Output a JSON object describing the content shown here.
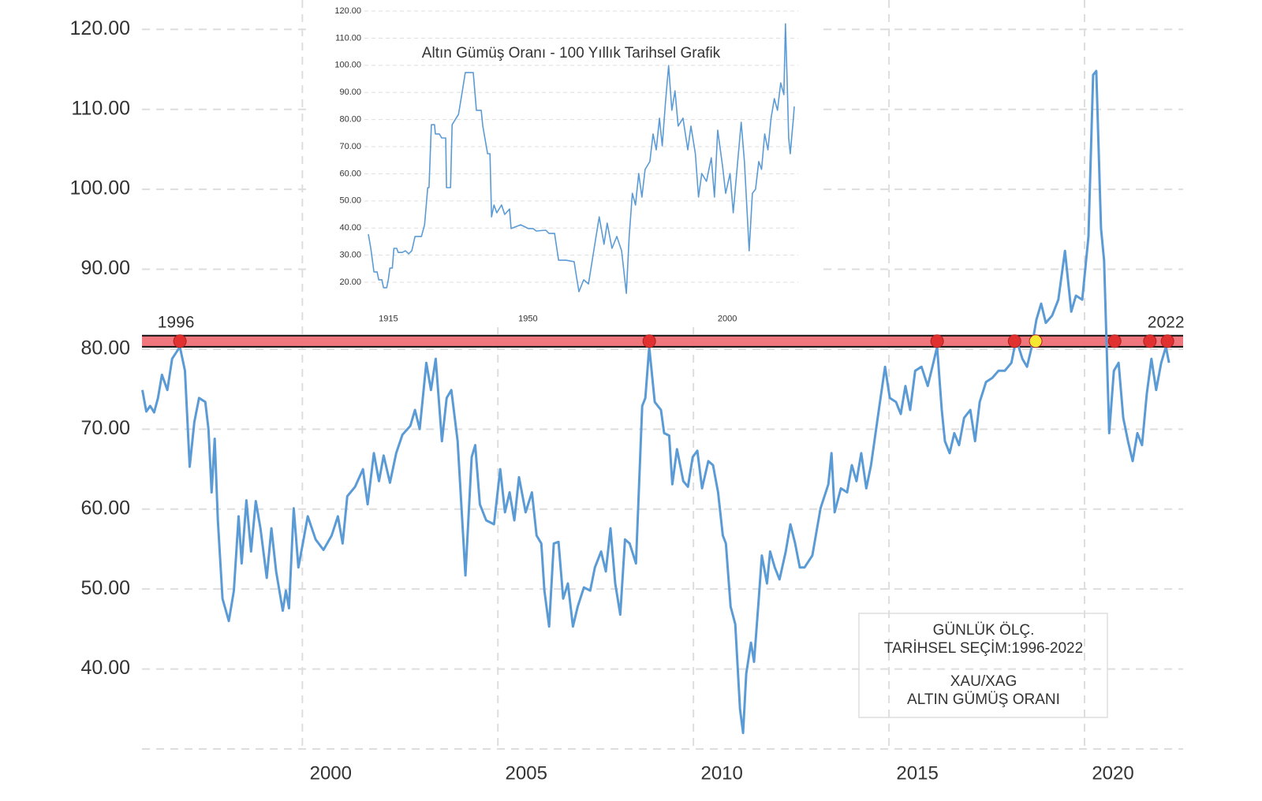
{
  "chart_data": [
    {
      "type": "line",
      "x": [
        1995.91,
        1996.01,
        1996.11,
        1996.21,
        1996.31,
        1996.41,
        1996.55,
        1996.67,
        1996.87,
        1997.0,
        1997.12,
        1997.24,
        1997.36,
        1997.52,
        1997.6,
        1997.68,
        1997.76,
        1997.84,
        1997.96,
        1998.12,
        1998.25,
        1998.37,
        1998.45,
        1998.57,
        1998.69,
        1998.81,
        1998.93,
        1999.09,
        1999.21,
        1999.33,
        1999.5,
        1999.58,
        1999.66,
        1999.78,
        1999.9,
        2000.02,
        2000.14,
        2000.34,
        2000.54,
        2000.75,
        2000.91,
        2001.03,
        2001.15,
        2001.35,
        2001.55,
        2001.67,
        2001.83,
        2001.96,
        2002.08,
        2002.24,
        2002.4,
        2002.56,
        2002.76,
        2002.88,
        2003.0,
        2003.17,
        2003.29,
        2003.41,
        2003.57,
        2003.69,
        2003.81,
        2003.97,
        2004.17,
        2004.33,
        2004.42,
        2004.54,
        2004.7,
        2004.9,
        2005.06,
        2005.18,
        2005.3,
        2005.42,
        2005.54,
        2005.71,
        2005.87,
        2005.99,
        2006.11,
        2006.19,
        2006.31,
        2006.43,
        2006.55,
        2006.67,
        2006.79,
        2006.92,
        2007.04,
        2007.2,
        2007.36,
        2007.48,
        2007.64,
        2007.76,
        2007.88,
        2008.0,
        2008.13,
        2008.25,
        2008.37,
        2008.53,
        2008.69,
        2008.77,
        2008.87,
        2009.01,
        2009.17,
        2009.25,
        2009.38,
        2009.46,
        2009.58,
        2009.74,
        2009.86,
        2009.98,
        2010.1,
        2010.22,
        2010.38,
        2010.5,
        2010.63,
        2010.75,
        2010.83,
        2010.95,
        2011.07,
        2011.19,
        2011.27,
        2011.35,
        2011.47,
        2011.55,
        2011.67,
        2011.75,
        2011.88,
        2011.96,
        2012.08,
        2012.2,
        2012.36,
        2012.48,
        2012.6,
        2012.72,
        2012.84,
        2013.04,
        2013.25,
        2013.45,
        2013.53,
        2013.61,
        2013.77,
        2013.93,
        2014.05,
        2014.17,
        2014.29,
        2014.42,
        2014.54,
        2014.74,
        2014.9,
        2015.02,
        2015.18,
        2015.3,
        2015.42,
        2015.54,
        2015.67,
        2015.83,
        2015.99,
        2016.11,
        2016.23,
        2016.35,
        2016.43,
        2016.55,
        2016.67,
        2016.79,
        2016.92,
        2017.08,
        2017.2,
        2017.32,
        2017.48,
        2017.64,
        2017.8,
        2017.96,
        2018.13,
        2018.25,
        2018.41,
        2018.53,
        2018.65,
        2018.77,
        2018.89,
        2019.01,
        2019.17,
        2019.33,
        2019.5,
        2019.66,
        2019.78,
        2019.94,
        2020.1,
        2020.22,
        2020.3,
        2020.42,
        2020.5,
        2020.63,
        2020.75,
        2020.87,
        2020.99,
        2021.11,
        2021.23,
        2021.35,
        2021.47,
        2021.59,
        2021.71,
        2021.83,
        2021.96,
        2022.08,
        2022.16
      ],
      "series": [
        {
          "color": "#5b9bd5",
          "values": [
            74.9,
            72.2,
            72.9,
            72.1,
            73.9,
            76.8,
            74.9,
            78.8,
            80.3,
            77.3,
            65.3,
            70.9,
            73.9,
            73.4,
            70.0,
            62.1,
            68.8,
            58.6,
            48.8,
            46.0,
            49.8,
            59.1,
            53.2,
            61.1,
            54.7,
            61.0,
            57.6,
            51.4,
            57.6,
            52.2,
            47.3,
            49.8,
            47.6,
            60.1,
            52.7,
            55.9,
            59.1,
            56.2,
            54.9,
            56.7,
            59.1,
            55.7,
            61.6,
            62.8,
            65.0,
            60.6,
            67.0,
            63.5,
            66.7,
            63.3,
            67.0,
            69.3,
            70.4,
            72.4,
            70.0,
            78.3,
            74.9,
            78.8,
            68.5,
            73.9,
            74.9,
            68.5,
            51.7,
            66.5,
            68.0,
            60.6,
            58.6,
            58.1,
            65.0,
            59.6,
            62.1,
            58.6,
            64.0,
            59.6,
            62.1,
            56.7,
            55.7,
            49.8,
            45.3,
            55.7,
            55.9,
            48.8,
            50.7,
            45.3,
            47.8,
            50.2,
            49.8,
            52.7,
            54.7,
            52.2,
            57.6,
            50.7,
            46.8,
            56.2,
            55.7,
            53.2,
            72.9,
            73.9,
            80.3,
            73.4,
            72.4,
            69.5,
            69.2,
            63.1,
            67.5,
            63.5,
            62.8,
            66.5,
            67.3,
            62.6,
            66.0,
            65.5,
            62.1,
            56.7,
            55.7,
            47.8,
            45.6,
            35.0,
            32.0,
            39.4,
            43.3,
            40.9,
            48.8,
            54.2,
            50.7,
            54.7,
            52.7,
            51.2,
            54.7,
            58.1,
            55.7,
            52.7,
            52.7,
            54.2,
            60.1,
            63.1,
            67.0,
            59.6,
            62.6,
            62.1,
            65.5,
            63.5,
            67.0,
            62.6,
            65.5,
            72.4,
            77.8,
            73.9,
            73.4,
            71.9,
            75.4,
            72.4,
            77.3,
            77.8,
            75.4,
            77.8,
            80.3,
            72.4,
            68.5,
            67.0,
            69.5,
            68.0,
            71.4,
            72.4,
            68.5,
            73.4,
            75.9,
            76.4,
            77.3,
            77.3,
            78.3,
            81.3,
            78.8,
            77.8,
            80.3,
            83.7,
            85.7,
            83.3,
            84.2,
            86.2,
            92.3,
            84.7,
            86.7,
            86.2,
            94.1,
            114.3,
            114.8,
            95.1,
            91.1,
            69.5,
            77.3,
            78.3,
            71.4,
            68.5,
            66.0,
            69.5,
            68.0,
            74.4,
            78.8,
            74.9,
            78.3,
            80.3,
            78.3
          ]
        }
      ],
      "xlim": [
        1995.9,
        2022.5
      ],
      "xticks": [
        2000,
        2005,
        2010,
        2015,
        2020
      ],
      "ylim": [
        30,
        122
      ],
      "yticks": [
        {
          "value": 40,
          "label": "40.00"
        },
        {
          "value": 50,
          "label": "50.00"
        },
        {
          "value": 60,
          "label": "60.00"
        },
        {
          "value": 70,
          "label": "70.00"
        },
        {
          "value": 80,
          "label": "80.00"
        },
        {
          "value": 90,
          "label": "90.00"
        },
        {
          "value": 100,
          "label": "100.00"
        },
        {
          "value": 110,
          "label": "110.00"
        },
        {
          "value": 120,
          "label": "120.00"
        }
      ],
      "grid": true,
      "band": [
        80.3,
        81.7
      ],
      "band_color": "#f07077",
      "markers": {
        "x": [
          1996.87,
          2008.87,
          2016.23,
          2018.21,
          2018.75,
          2020.77,
          2021.67,
          2022.12
        ],
        "y": [
          81.0,
          81.0,
          81.0,
          81.0,
          81.0,
          81.0,
          81.0,
          81.0
        ],
        "colors": [
          "#e03030",
          "#e03030",
          "#e03030",
          "#e03030",
          "#f5e830",
          "#e03030",
          "#e03030",
          "#e03030"
        ]
      },
      "annotations": [
        "1996",
        "2022"
      ],
      "info_box": [
        "GÜNLÜK ÖLÇ.",
        "TARİHSEL SEÇİM:1996-2022",
        "XAU/XAG",
        "ALTIN GÜMÜŞ ORANI"
      ]
    },
    {
      "type": "line",
      "title": "Altın Gümüş Oranı - 100 Yıllık Tarihsel Grafik",
      "x": [
        1912.4,
        1913.0,
        1913.8,
        1914.6,
        1915.0,
        1915.8,
        1916.2,
        1917.0,
        1917.4,
        1917.8,
        1918.4,
        1918.8,
        1919.5,
        1919.9,
        1920.9,
        1921.7,
        1922.5,
        1923.3,
        1924.1,
        1925.7,
        1926.5,
        1927.3,
        1927.6,
        1928.2,
        1929.0,
        1929.2,
        1930.2,
        1930.8,
        1931.8,
        1932.0,
        1933.0,
        1933.4,
        1935.0,
        1935.9,
        1936.7,
        1938.7,
        1939.5,
        1940.7,
        1941.1,
        1942.3,
        1942.9,
        1943.3,
        1943.9,
        1944.6,
        1945.8,
        1946.6,
        1947.8,
        1948.2,
        1950.6,
        1952.5,
        1953.7,
        1954.5,
        1956.9,
        1957.7,
        1959.1,
        1960.1,
        1962.0,
        1964.0,
        1964.4,
        1965.2,
        1966.4,
        1967.6,
        1968.4,
        1969.5,
        1970.3,
        1971.5,
        1972.3,
        1973.5,
        1974.7,
        1975.9,
        1977.1,
        1977.8,
        1978.6,
        1979.4,
        1980.2,
        1981.0,
        1981.8,
        1983.0,
        1983.8,
        1984.6,
        1985.4,
        1986.1,
        1986.9,
        1987.7,
        1988.5,
        1989.3,
        1990.1,
        1991.3,
        1992.5,
        1993.3,
        1994.4,
        1995.2,
        1996.0,
        1997.2,
        1998.4,
        1999.2,
        2000.0,
        2001.2,
        2002.0,
        2003.1,
        2003.9,
        2005.1,
        2005.9,
        2006.7,
        2007.9,
        2008.7,
        2009.5,
        2010.3,
        2011.0,
        2011.8,
        2012.6,
        2013.4,
        2014.2,
        2015.0,
        2015.8,
        2016.6,
        2017.0,
        2017.4,
        2017.8,
        2018.2,
        2019.0,
        2019.2
      ],
      "series": [
        {
          "color": "#5b9bd5",
          "values": [
            37.7,
            32.5,
            23.8,
            23.8,
            20.9,
            20.9,
            18.0,
            18.0,
            20.9,
            25.2,
            25.2,
            32.5,
            32.5,
            31.0,
            31.0,
            31.6,
            30.5,
            31.6,
            36.9,
            36.9,
            41.2,
            54.9,
            54.9,
            78.1,
            78.1,
            74.7,
            74.7,
            73.2,
            73.2,
            54.9,
            54.9,
            78.1,
            81.9,
            89.8,
            97.3,
            97.3,
            83.4,
            83.4,
            77.6,
            67.4,
            67.4,
            44.1,
            48.5,
            45.6,
            48.5,
            45.0,
            47.0,
            39.8,
            41.2,
            39.8,
            39.8,
            38.9,
            39.2,
            38.0,
            38.0,
            28.1,
            28.1,
            27.6,
            23.8,
            16.5,
            20.9,
            19.4,
            26.7,
            36.9,
            44.1,
            34.0,
            41.8,
            32.5,
            36.9,
            31.6,
            15.9,
            36.9,
            52.8,
            48.5,
            60.1,
            51.4,
            61.6,
            64.5,
            74.7,
            68.8,
            80.5,
            70.3,
            86.3,
            99.9,
            83.4,
            90.6,
            77.6,
            80.5,
            68.8,
            77.6,
            67.4,
            51.4,
            60.1,
            57.2,
            65.9,
            51.4,
            76.1,
            63.0,
            52.8,
            60.1,
            45.6,
            65.9,
            79.0,
            64.5,
            31.6,
            52.8,
            54.3,
            64.5,
            61.6,
            74.7,
            68.8,
            80.5,
            87.7,
            83.4,
            93.5,
            89.2,
            115.3,
            95.0,
            73.2,
            67.4,
            80.5,
            84.8
          ]
        }
      ],
      "xlim": [
        1912,
        2020
      ],
      "xticks": [
        1915,
        1950,
        2000
      ],
      "ylim": [
        10,
        121
      ],
      "yticks": [
        {
          "value": 20,
          "label": "20.00"
        },
        {
          "value": 30,
          "label": "30.00"
        },
        {
          "value": 40,
          "label": "40.00"
        },
        {
          "value": 50,
          "label": "50.00"
        },
        {
          "value": 60,
          "label": "60.00"
        },
        {
          "value": 70,
          "label": "70.00"
        },
        {
          "value": 80,
          "label": "80.00"
        },
        {
          "value": 90,
          "label": "90.00"
        },
        {
          "value": 100,
          "label": "100.00"
        },
        {
          "value": 110,
          "label": "110.00"
        },
        {
          "value": 120,
          "label": "120.00"
        }
      ],
      "grid": true
    }
  ]
}
